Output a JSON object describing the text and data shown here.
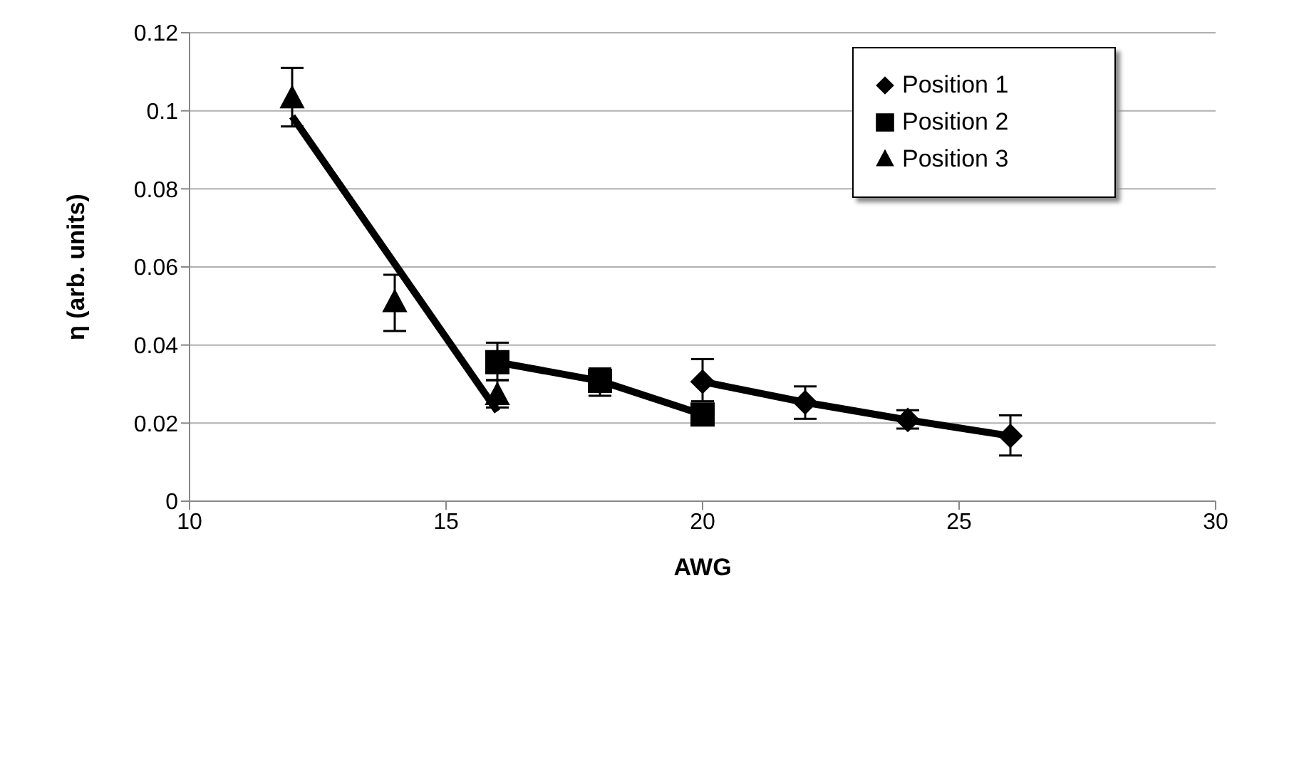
{
  "chart_data": {
    "type": "scatter",
    "xlabel": "AWG",
    "ylabel": "η (arb. units)",
    "xlim": [
      10,
      30
    ],
    "xticks": [
      10,
      15,
      20,
      25,
      30
    ],
    "ylim": [
      0,
      0.12
    ],
    "yticks": [
      0,
      0.02,
      0.04,
      0.06,
      0.08,
      0.1,
      0.12
    ],
    "grid": "y",
    "legend": "top right",
    "series": [
      {
        "name": "Position 1",
        "type": "line",
        "marker": "diamond",
        "color": "#000000",
        "x": [
          20,
          22,
          24,
          26
        ],
        "values": [
          0.0306,
          0.0253,
          0.0208,
          0.0167
        ],
        "errors": [
          [
            0.0256,
            0.0364
          ],
          [
            0.0211,
            0.0294
          ],
          [
            0.0186,
            0.0233
          ],
          [
            0.0117,
            0.022
          ]
        ]
      },
      {
        "name": "Position 2",
        "type": "line",
        "marker": "square",
        "color": "#000000",
        "x": [
          16,
          18,
          20
        ],
        "values": [
          0.0356,
          0.0308,
          0.0222
        ],
        "errors": [
          [
            0.031,
            0.0406
          ],
          [
            0.027,
            0.034
          ],
          null
        ]
      },
      {
        "name": "Position 3",
        "marker": "triangle",
        "color": "#000000",
        "x": [
          12,
          14,
          16
        ],
        "values": [
          0.103,
          0.0508,
          0.027
        ],
        "errors": [
          [
            0.096,
            0.111
          ],
          [
            0.0436,
            0.058
          ],
          [
            0.024,
            0.031
          ]
        ]
      },
      {
        "type": "line",
        "marker": "none",
        "color": "#000000",
        "x": [
          12,
          16
        ],
        "values": [
          0.0986,
          0.023
        ]
      }
    ]
  }
}
